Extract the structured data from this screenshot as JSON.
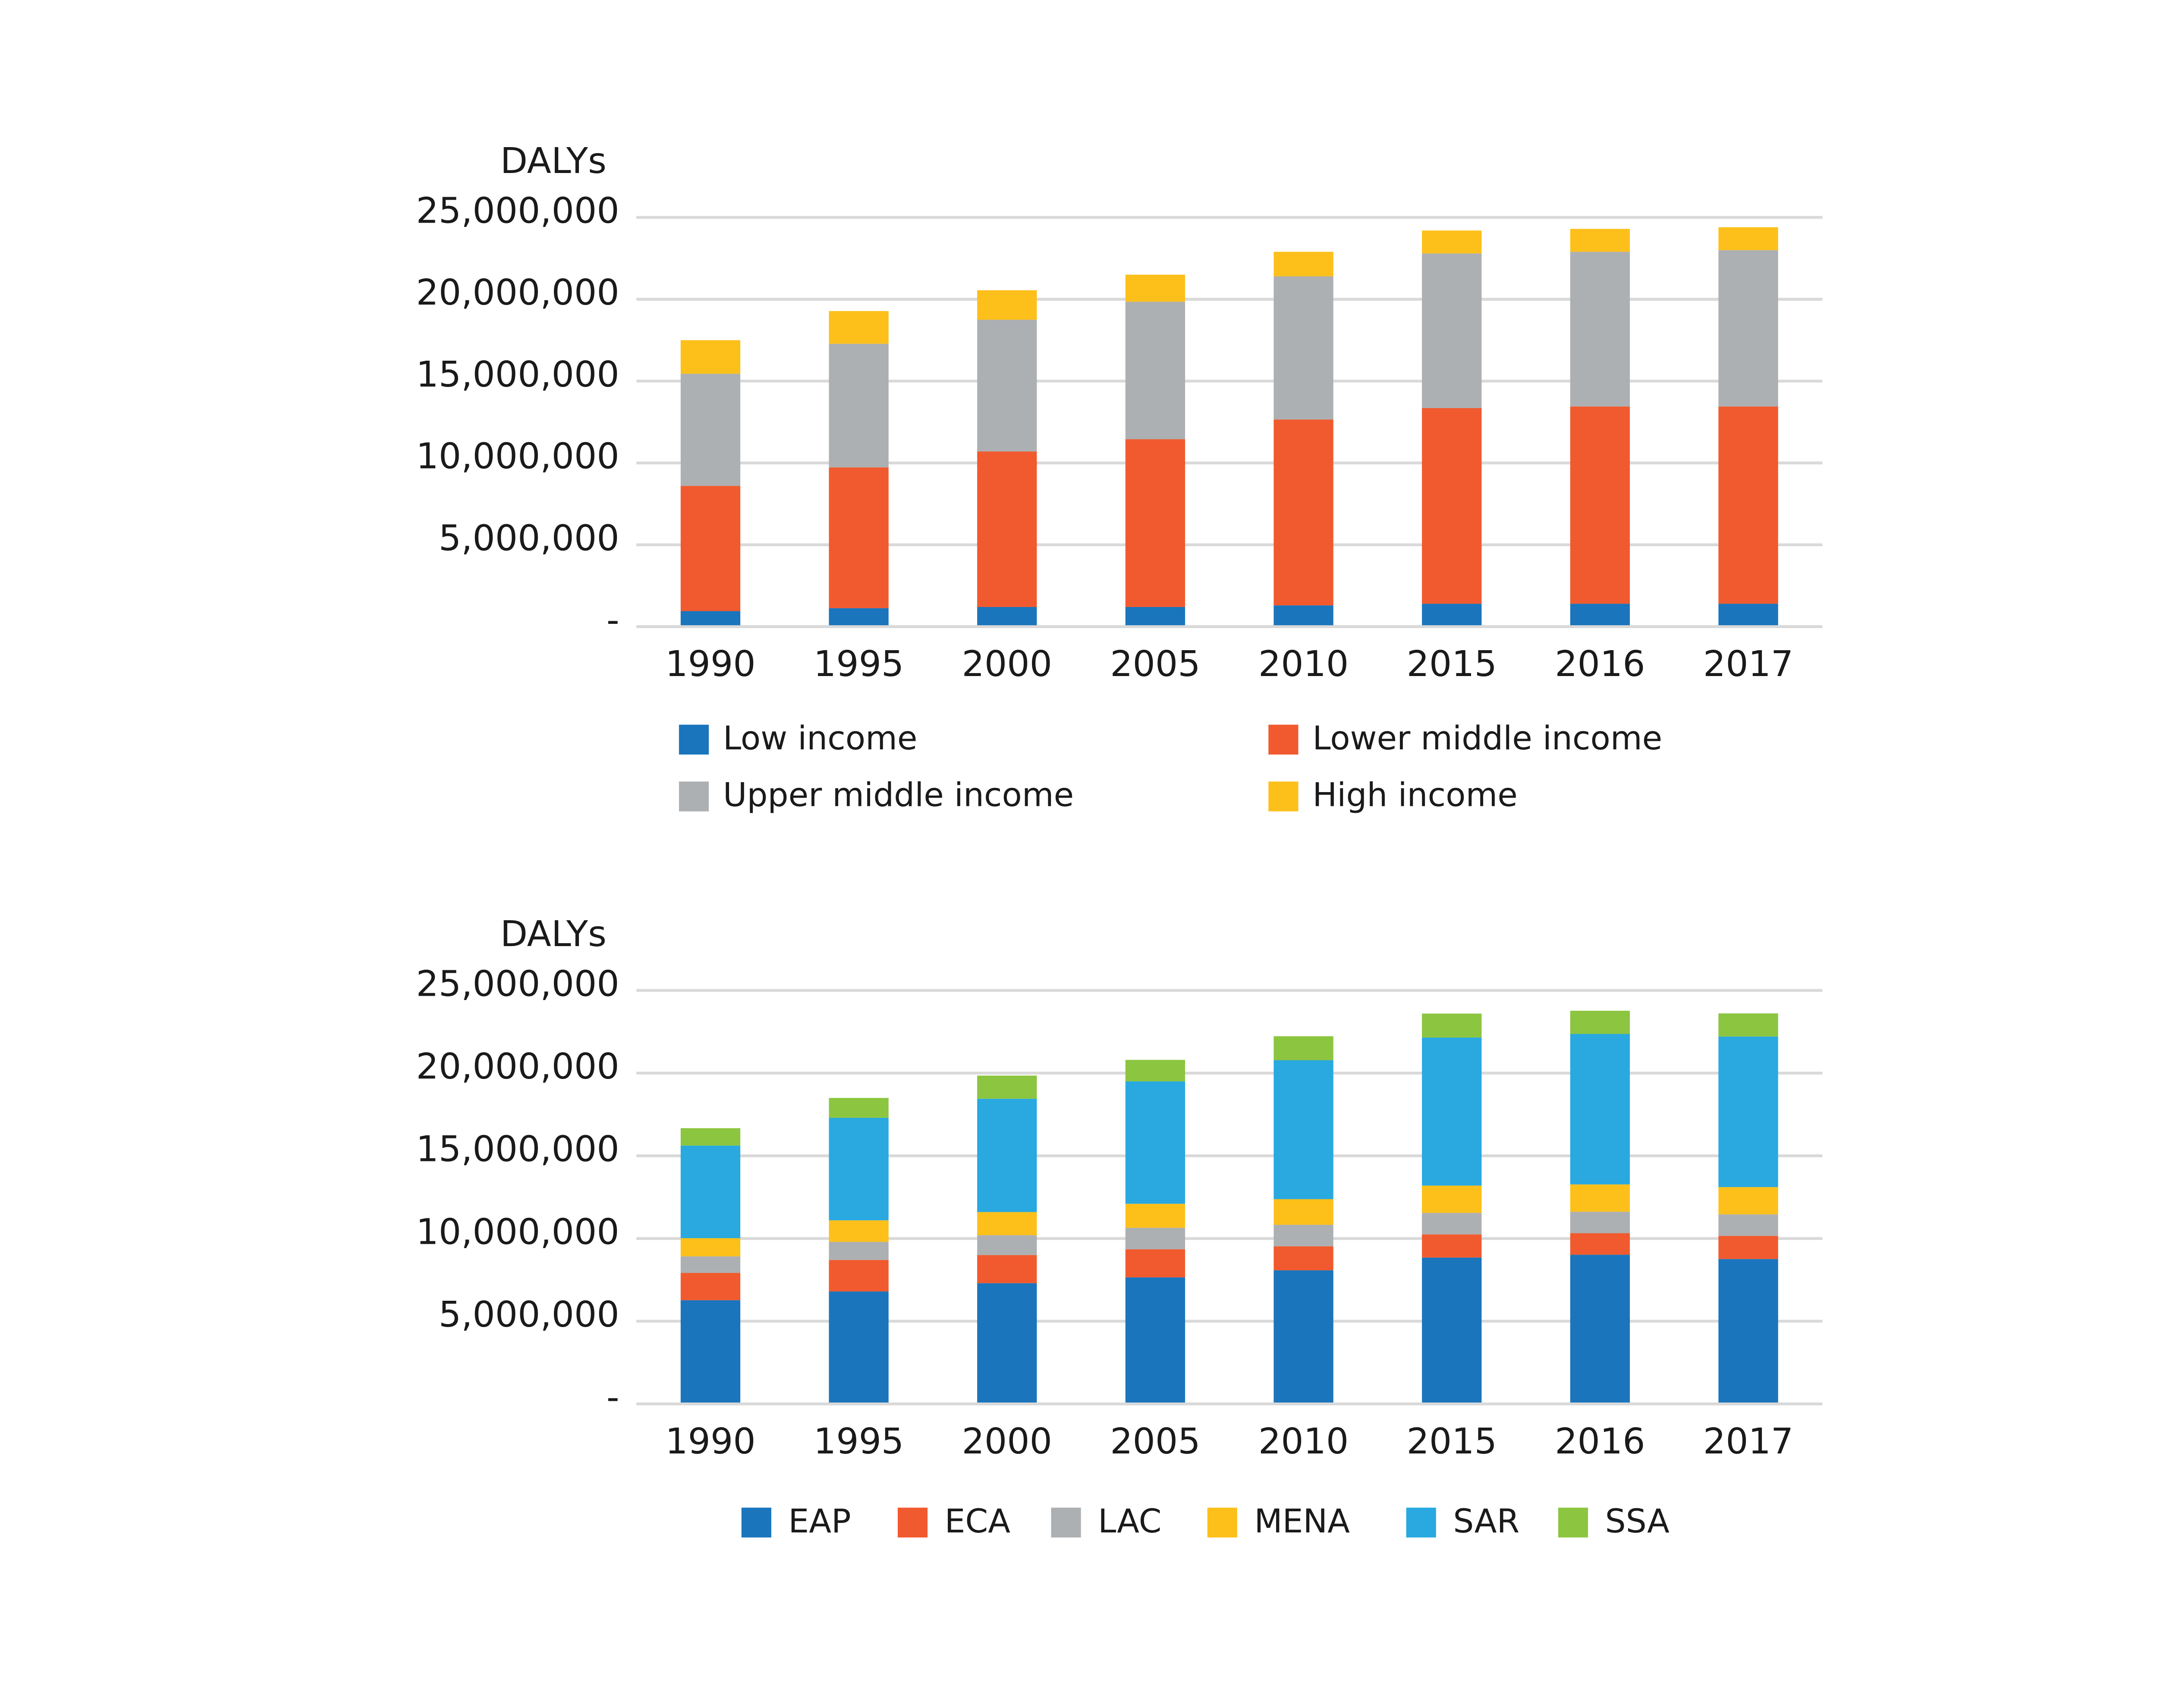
{
  "chart_data": [
    {
      "type": "bar",
      "stacked": true,
      "y_label": "DALYs",
      "categories": [
        "1990",
        "1995",
        "2000",
        "2005",
        "2010",
        "2015",
        "2016",
        "2017"
      ],
      "series": [
        {
          "name": "Low income",
          "color": "#1a75bc",
          "values": [
            950000,
            1130000,
            1200000,
            1200000,
            1300000,
            1400000,
            1400000,
            1400000
          ]
        },
        {
          "name": "Lower middle income",
          "color": "#f15a2e",
          "values": [
            7650000,
            8600000,
            9500000,
            10250000,
            11350000,
            11950000,
            12050000,
            12050000
          ]
        },
        {
          "name": "Upper middle income",
          "color": "#adb0b2",
          "values": [
            6850000,
            7550000,
            8050000,
            8400000,
            8750000,
            9450000,
            9450000,
            9550000
          ]
        },
        {
          "name": "High income",
          "color": "#fdc01b",
          "values": [
            2050000,
            2000000,
            1800000,
            1650000,
            1500000,
            1400000,
            1400000,
            1400000
          ]
        }
      ],
      "ylim": [
        0,
        25000000
      ],
      "yticks": [
        {
          "value": 0,
          "label": "-"
        },
        {
          "value": 5000000,
          "label": "5,000,000"
        },
        {
          "value": 10000000,
          "label": "10,000,000"
        },
        {
          "value": 15000000,
          "label": "15,000,000"
        },
        {
          "value": 20000000,
          "label": "20,000,000"
        },
        {
          "value": 25000000,
          "label": "25,000,000"
        }
      ],
      "grid": true,
      "legend_columns": 2
    },
    {
      "type": "bar",
      "stacked": true,
      "y_label": "DALYs",
      "categories": [
        "1990",
        "1995",
        "2000",
        "2005",
        "2010",
        "2015",
        "2016",
        "2017"
      ],
      "series": [
        {
          "name": "EAP",
          "color": "#1a75bc",
          "values": [
            6270000,
            6800000,
            7300000,
            7650000,
            8080000,
            8850000,
            9020000,
            8760000
          ]
        },
        {
          "name": "ECA",
          "color": "#f15a2e",
          "values": [
            1650000,
            1900000,
            1700000,
            1700000,
            1450000,
            1400000,
            1300000,
            1400000
          ]
        },
        {
          "name": "LAC",
          "color": "#adb0b2",
          "values": [
            1000000,
            1100000,
            1200000,
            1300000,
            1300000,
            1300000,
            1300000,
            1300000
          ]
        },
        {
          "name": "MENA",
          "color": "#fdc01b",
          "values": [
            1100000,
            1300000,
            1400000,
            1450000,
            1550000,
            1650000,
            1650000,
            1650000
          ]
        },
        {
          "name": "SAR",
          "color": "#29a9e0",
          "values": [
            5600000,
            6200000,
            6850000,
            7400000,
            8400000,
            8950000,
            9100000,
            9100000
          ]
        },
        {
          "name": "SSA",
          "color": "#8cc540",
          "values": [
            1050000,
            1200000,
            1400000,
            1300000,
            1450000,
            1450000,
            1400000,
            1400000
          ]
        }
      ],
      "ylim": [
        0,
        25000000
      ],
      "yticks": [
        {
          "value": 0,
          "label": "-"
        },
        {
          "value": 5000000,
          "label": "5,000,000"
        },
        {
          "value": 10000000,
          "label": "10,000,000"
        },
        {
          "value": 15000000,
          "label": "15,000,000"
        },
        {
          "value": 20000000,
          "label": "20,000,000"
        },
        {
          "value": 25000000,
          "label": "25,000,000"
        }
      ],
      "grid": true,
      "legend_columns": 6
    }
  ]
}
